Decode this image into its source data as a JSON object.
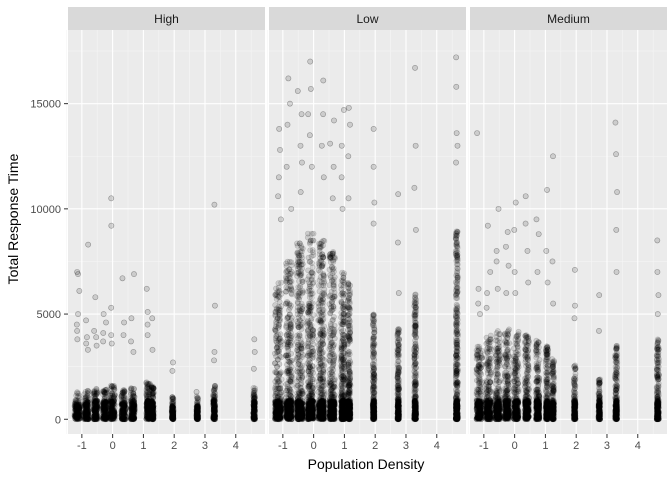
{
  "chart_data": {
    "type": "scatter",
    "xlabel": "Population Density",
    "ylabel": "Total Response Time",
    "facet_by": "density",
    "xlim": [
      -1.45,
      4.95
    ],
    "ylim": [
      -700,
      18500
    ],
    "x_ticks": [
      -1,
      0,
      1,
      2,
      3,
      4
    ],
    "y_ticks": [
      0,
      5000,
      10000,
      15000
    ],
    "x_tick_labels": [
      "-1",
      "0",
      "1",
      "2",
      "3",
      "4"
    ],
    "y_tick_labels": [
      "0",
      "5000",
      "10000",
      "15000"
    ],
    "grid": true,
    "point_color": "#000000",
    "point_alpha": 0.13,
    "panels": [
      {
        "label": "High",
        "columns": [
          {
            "x": -1.15,
            "w": 0.18,
            "dense_max": 1300,
            "outliers": [
              4500,
              4200,
              6100,
              6900,
              7000,
              5000,
              3800
            ]
          },
          {
            "x": -0.85,
            "w": 0.15,
            "dense_max": 1400,
            "outliers": [
              8300,
              3900,
              4700,
              3600,
              3300
            ]
          },
          {
            "x": -0.55,
            "w": 0.14,
            "dense_max": 1500,
            "outliers": [
              5800,
              3900,
              4200,
              3500
            ]
          },
          {
            "x": -0.25,
            "w": 0.15,
            "dense_max": 1500,
            "outliers": [
              4100,
              4600,
              5000,
              3700
            ]
          },
          {
            "x": 0.0,
            "w": 0.16,
            "dense_max": 1600,
            "outliers": [
              9200,
              10500,
              5300,
              4000,
              3600
            ]
          },
          {
            "x": 0.35,
            "w": 0.14,
            "dense_max": 1400,
            "outliers": [
              6700,
              4600,
              4000
            ]
          },
          {
            "x": 0.65,
            "w": 0.14,
            "dense_max": 1500,
            "outliers": [
              6900,
              4800,
              3700,
              3200
            ]
          },
          {
            "x": 1.15,
            "w": 0.12,
            "dense_max": 1800,
            "outliers": [
              6200,
              5100,
              4500,
              4000
            ]
          },
          {
            "x": 1.3,
            "w": 0.07,
            "dense_max": 1600,
            "outliers": [
              4800,
              3300
            ]
          },
          {
            "x": 1.95,
            "w": 0.06,
            "dense_max": 1100,
            "outliers": [
              2700,
              2300
            ]
          },
          {
            "x": 2.75,
            "w": 0.06,
            "dense_max": 1100,
            "outliers": [
              1300
            ]
          },
          {
            "x": 3.3,
            "w": 0.07,
            "dense_max": 1600,
            "outliers": [
              10200,
              5400,
              3200,
              2800
            ]
          },
          {
            "x": 4.6,
            "w": 0.06,
            "dense_max": 1500,
            "outliers": [
              3800,
              3200,
              2400
            ]
          }
        ]
      },
      {
        "label": "Low",
        "columns": [
          {
            "x": -1.15,
            "w": 0.22,
            "dense_max": 6500,
            "outliers": [
              12800,
              13800,
              11500,
              10600,
              9500
            ]
          },
          {
            "x": -0.8,
            "w": 0.2,
            "dense_max": 7500,
            "outliers": [
              14000,
              16200,
              15000,
              12000,
              10000
            ]
          },
          {
            "x": -0.45,
            "w": 0.2,
            "dense_max": 8500,
            "outliers": [
              15600,
              14500,
              13000,
              12200,
              10800
            ]
          },
          {
            "x": -0.1,
            "w": 0.2,
            "dense_max": 9000,
            "outliers": [
              17000,
              15700,
              14500,
              13500,
              12000
            ]
          },
          {
            "x": 0.25,
            "w": 0.2,
            "dense_max": 8500,
            "outliers": [
              16100,
              14500,
              13000,
              11500
            ]
          },
          {
            "x": 0.6,
            "w": 0.18,
            "dense_max": 8000,
            "outliers": [
              14200,
              13100,
              12000,
              10500
            ]
          },
          {
            "x": 0.95,
            "w": 0.12,
            "dense_max": 7000,
            "outliers": [
              14700,
              13000,
              11500,
              10000
            ]
          },
          {
            "x": 1.15,
            "w": 0.1,
            "dense_max": 6500,
            "outliers": [
              14800,
              14000,
              12500,
              10500
            ]
          },
          {
            "x": 1.95,
            "w": 0.06,
            "dense_max": 5000,
            "outliers": [
              13800,
              12000,
              10300,
              9300
            ]
          },
          {
            "x": 2.75,
            "w": 0.06,
            "dense_max": 4500,
            "outliers": [
              10700,
              8400,
              6000
            ]
          },
          {
            "x": 3.3,
            "w": 0.07,
            "dense_max": 6000,
            "outliers": [
              16700,
              13000,
              11000,
              9000
            ]
          },
          {
            "x": 4.65,
            "w": 0.07,
            "dense_max": 9000,
            "outliers": [
              17200,
              15800,
              13600,
              13000,
              12200
            ]
          }
        ]
      },
      {
        "label": "Medium",
        "columns": [
          {
            "x": -1.15,
            "w": 0.18,
            "dense_max": 3500,
            "outliers": [
              13600,
              6200,
              5500,
              5000
            ]
          },
          {
            "x": -0.85,
            "w": 0.17,
            "dense_max": 4000,
            "outliers": [
              9200,
              7000,
              6000,
              5300
            ]
          },
          {
            "x": -0.55,
            "w": 0.16,
            "dense_max": 4200,
            "outliers": [
              10000,
              8000,
              7500,
              6200
            ]
          },
          {
            "x": -0.25,
            "w": 0.16,
            "dense_max": 4300,
            "outliers": [
              8900,
              8200,
              7300,
              6000
            ]
          },
          {
            "x": 0.05,
            "w": 0.16,
            "dense_max": 4200,
            "outliers": [
              10300,
              9000,
              7000,
              6000
            ]
          },
          {
            "x": 0.4,
            "w": 0.14,
            "dense_max": 4000,
            "outliers": [
              10600,
              9300,
              8000,
              6500
            ]
          },
          {
            "x": 0.75,
            "w": 0.12,
            "dense_max": 3800,
            "outliers": [
              9500,
              8800,
              7000
            ]
          },
          {
            "x": 1.05,
            "w": 0.08,
            "dense_max": 3500,
            "outliers": [
              10900,
              8000,
              6500
            ]
          },
          {
            "x": 1.25,
            "w": 0.07,
            "dense_max": 3000,
            "outliers": [
              12500,
              7500,
              5500
            ]
          },
          {
            "x": 1.95,
            "w": 0.06,
            "dense_max": 2600,
            "outliers": [
              7100,
              5400,
              4800
            ]
          },
          {
            "x": 2.75,
            "w": 0.06,
            "dense_max": 1900,
            "outliers": [
              5900,
              4200
            ]
          },
          {
            "x": 3.3,
            "w": 0.07,
            "dense_max": 3500,
            "outliers": [
              14100,
              12600,
              10800,
              9000,
              7000
            ]
          },
          {
            "x": 4.65,
            "w": 0.07,
            "dense_max": 3800,
            "outliers": [
              8500,
              7000,
              5900,
              5000
            ]
          }
        ]
      }
    ]
  }
}
